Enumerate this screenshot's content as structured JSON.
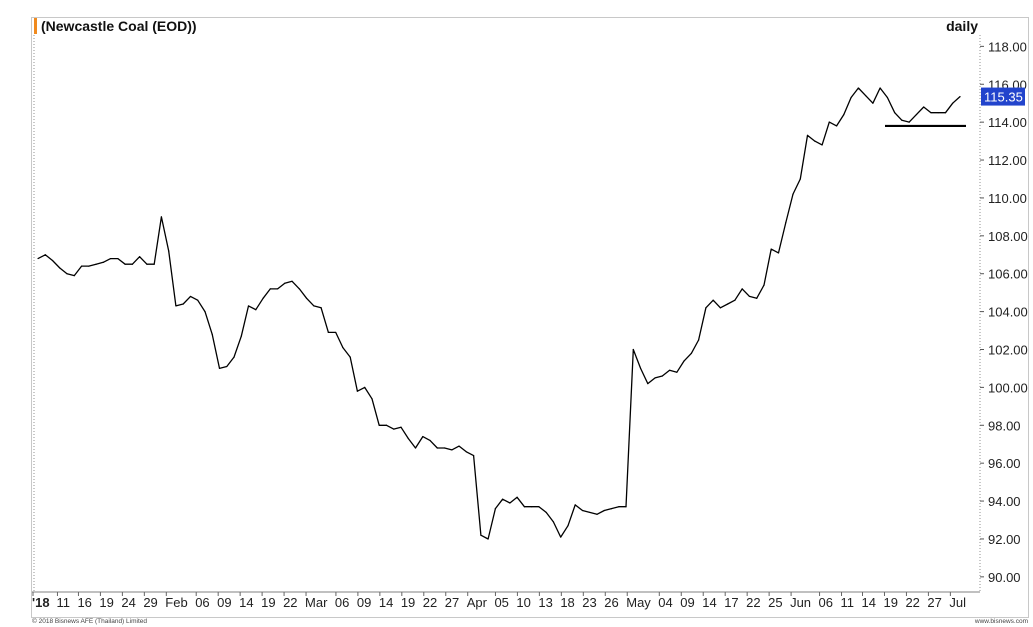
{
  "chart_data": {
    "type": "line",
    "title": "(Newcastle Coal (EOD))",
    "period": "daily",
    "xlabel": "",
    "ylabel": "",
    "ylim": [
      89.2,
      118.6
    ],
    "grid": false,
    "yticks": [
      "90.00",
      "92.00",
      "94.00",
      "96.00",
      "98.00",
      "100.00",
      "102.00",
      "104.00",
      "106.00",
      "108.00",
      "110.00",
      "112.00",
      "114.00",
      "116.00",
      "118.00"
    ],
    "xtick_labels": [
      "'18",
      "11",
      "16",
      "19",
      "24",
      "29",
      "Feb",
      "06",
      "09",
      "14",
      "19",
      "22",
      "Mar",
      "06",
      "09",
      "14",
      "19",
      "22",
      "27",
      "Apr",
      "05",
      "10",
      "13",
      "18",
      "23",
      "26",
      "May",
      "04",
      "09",
      "14",
      "17",
      "22",
      "25",
      "Jun",
      "06",
      "11",
      "14",
      "19",
      "22",
      "27",
      "Jul"
    ],
    "last_value": "115.35",
    "support_line": 113.8,
    "series": [
      {
        "values": [
          106.8,
          107.0,
          106.7,
          106.3,
          106.0,
          105.9,
          106.4,
          106.4,
          106.5,
          106.6,
          106.8,
          106.8,
          106.5,
          106.5,
          106.9,
          106.5,
          106.5,
          109.0,
          107.2,
          104.3,
          104.4,
          104.8,
          104.6,
          104.0,
          102.8,
          101.0,
          101.1,
          101.6,
          102.7,
          104.3,
          104.1,
          104.7,
          105.2,
          105.2,
          105.5,
          105.6,
          105.2,
          104.7,
          104.3,
          104.2,
          102.9,
          102.9,
          102.1,
          101.6,
          99.8,
          100.0,
          99.4,
          98.0,
          98.0,
          97.8,
          97.9,
          97.3,
          96.8,
          97.4,
          97.2,
          96.8,
          96.8,
          96.7,
          96.9,
          96.6,
          96.4,
          92.2,
          92.0,
          93.6,
          94.1,
          93.9,
          94.2,
          93.7,
          93.7,
          93.7,
          93.4,
          92.9,
          92.1,
          92.7,
          93.8,
          93.5,
          93.4,
          93.3,
          93.5,
          93.6,
          93.7,
          93.7,
          102.0,
          101.0,
          100.2,
          100.5,
          100.6,
          100.9,
          100.8,
          101.4,
          101.8,
          102.5,
          104.2,
          104.6,
          104.2,
          104.4,
          104.6,
          105.2,
          104.8,
          104.7,
          105.4,
          107.3,
          107.1,
          108.7,
          110.2,
          111.0,
          113.3,
          113.0,
          112.8,
          114.0,
          113.8,
          114.4,
          115.3,
          115.8,
          115.4,
          115.0,
          115.8,
          115.3,
          114.5,
          114.1,
          114.0,
          114.4,
          114.8,
          114.5,
          114.5,
          114.5,
          115.0,
          115.35
        ]
      }
    ]
  },
  "footer": {
    "copyright": "© 2018 Bisnews AFE (Thailand) Limited",
    "website": "www.bisnews.com"
  },
  "colors": {
    "line": "#000000",
    "axis": "#808080",
    "accent_bar": "#f08a1e",
    "last_value_bg": "#2244cc",
    "frame": "#c8c8c8"
  }
}
